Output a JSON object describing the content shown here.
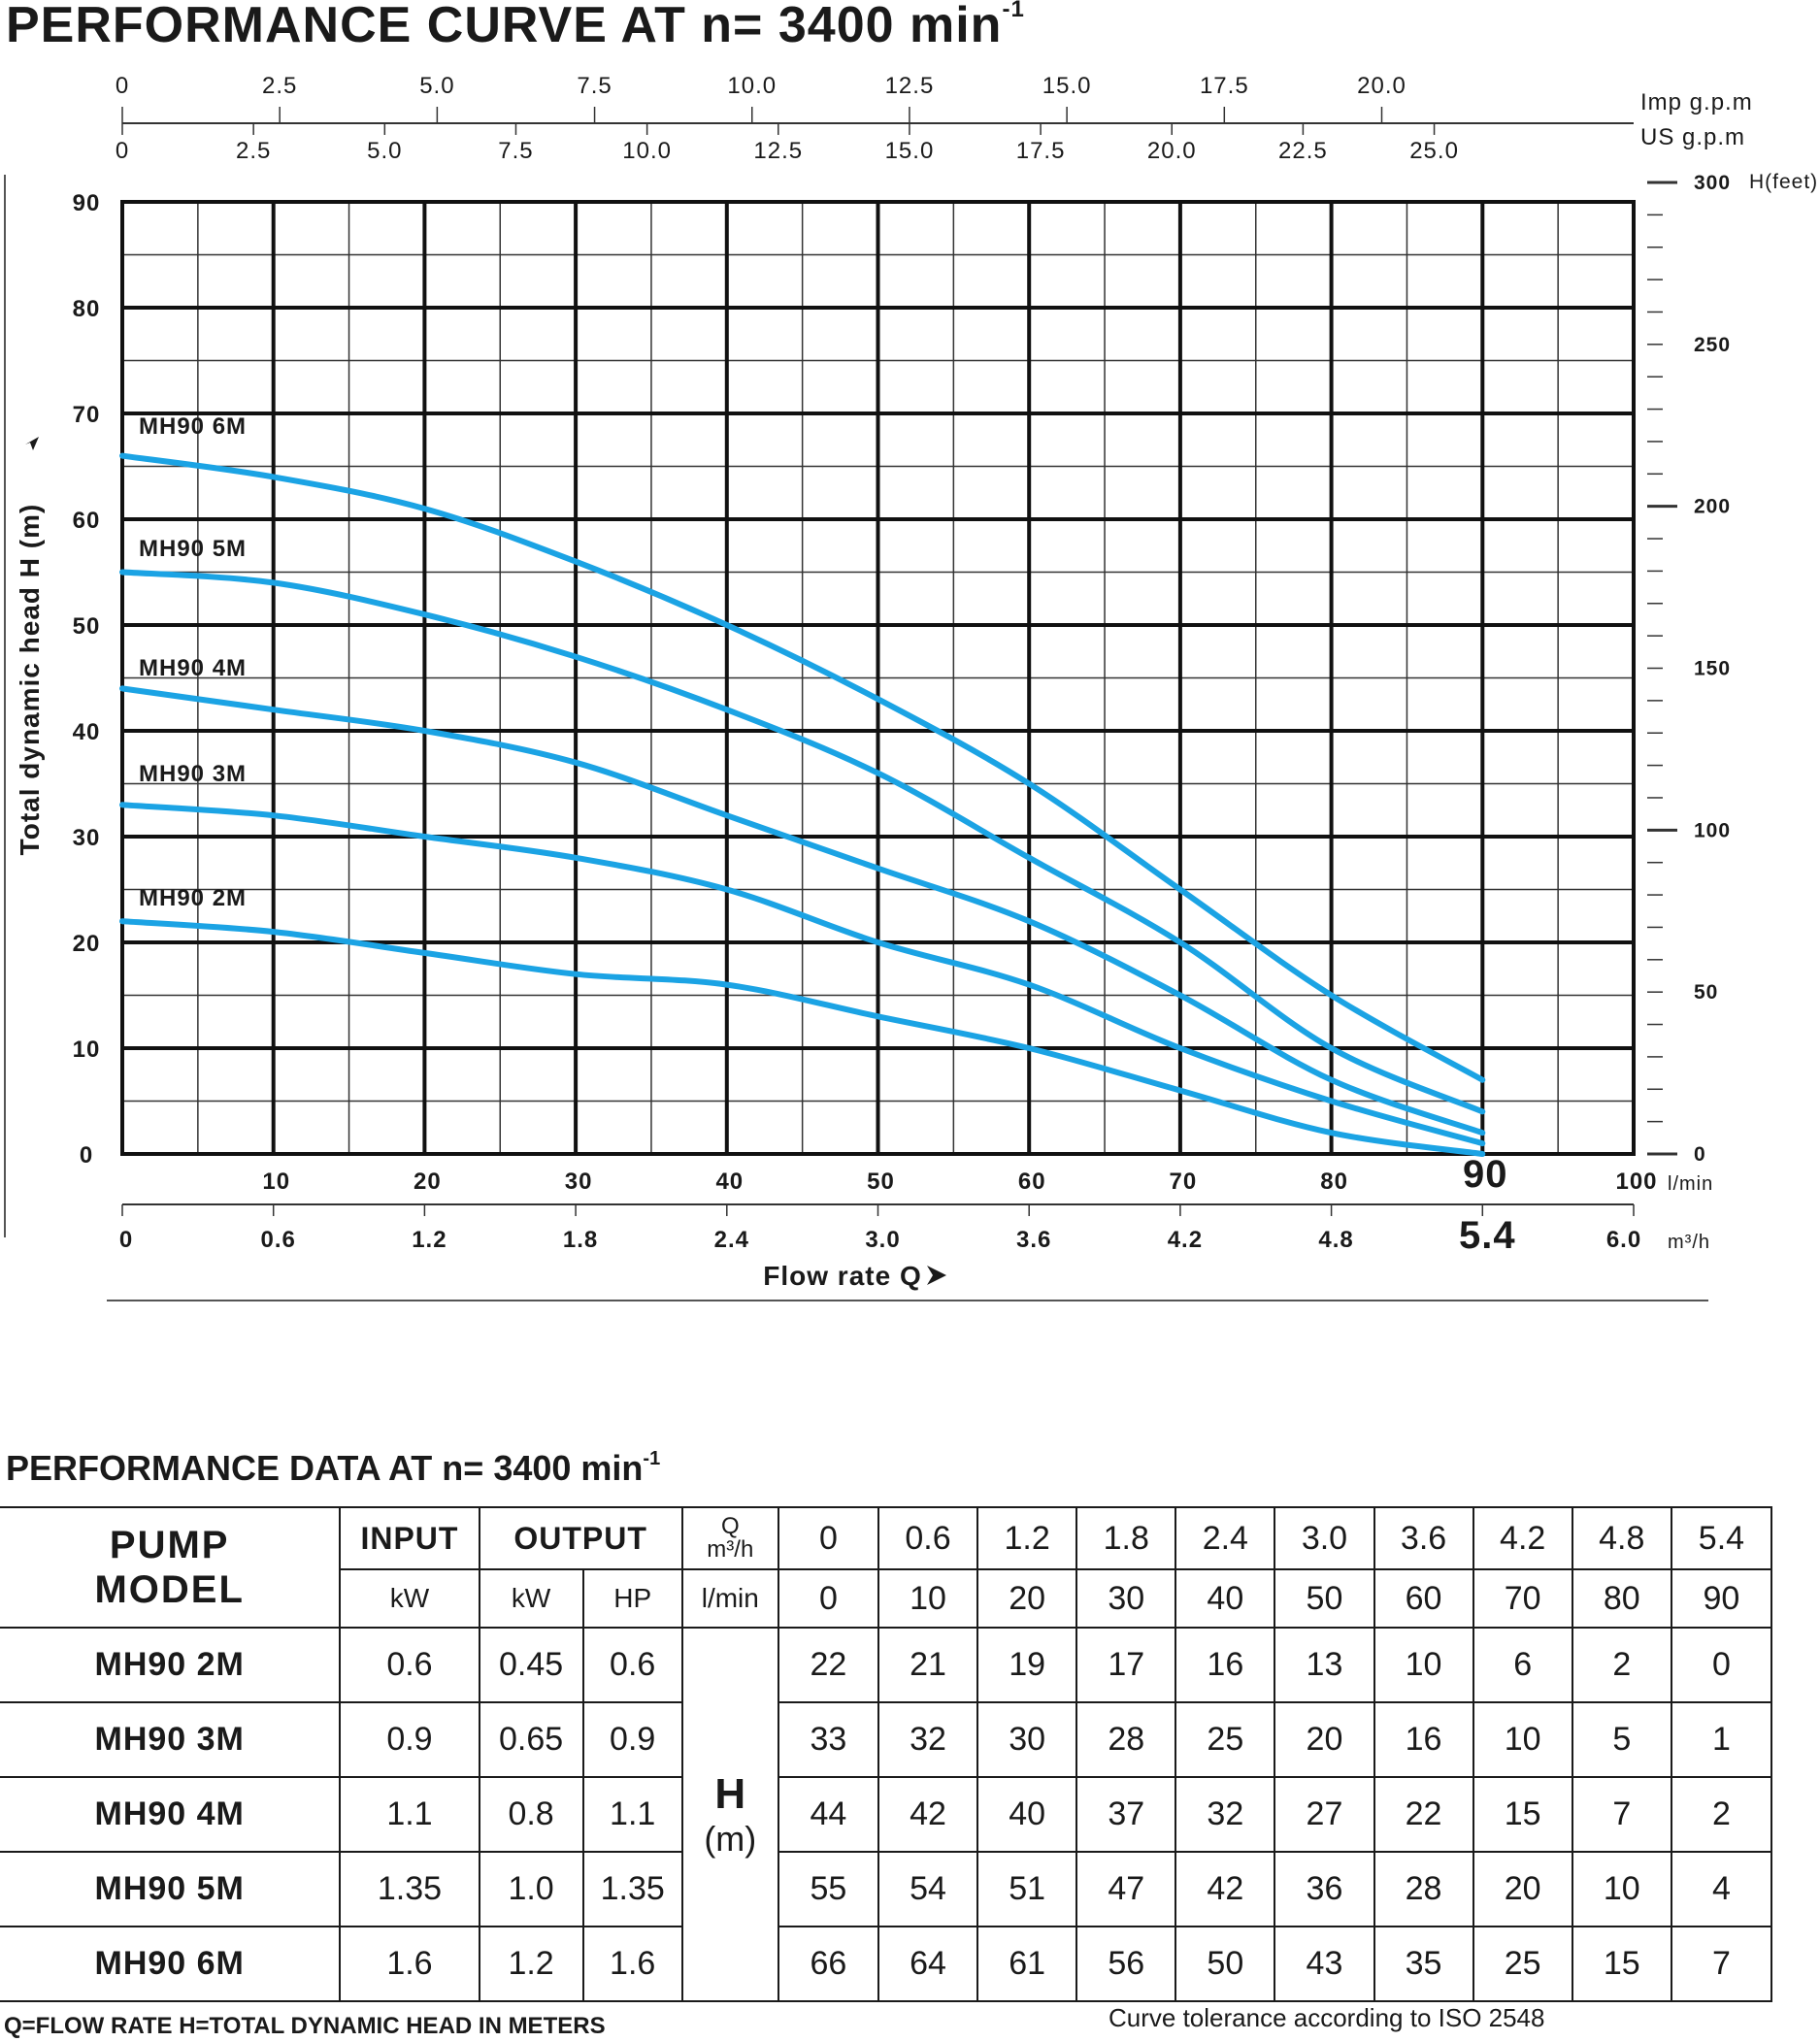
{
  "title": {
    "text": "PERFORMANCE CURVE AT n= 3400 min",
    "sup": "-1"
  },
  "chart_data": {
    "type": "line",
    "x_unit": "l/min",
    "x": [
      0,
      10,
      20,
      30,
      40,
      50,
      60,
      70,
      80,
      90
    ],
    "xlim": [
      0,
      100
    ],
    "ylim": [
      0,
      90
    ],
    "ylabel": "Total dynamic head H (m)",
    "xlabel": "Flow rate Q",
    "series": [
      {
        "name": "MH90 6M",
        "values": [
          66,
          64,
          61,
          56,
          50,
          43,
          35,
          25,
          15,
          7
        ]
      },
      {
        "name": "MH90 5M",
        "values": [
          55,
          54,
          51,
          47,
          42,
          36,
          28,
          20,
          10,
          4
        ]
      },
      {
        "name": "MH90 4M",
        "values": [
          44,
          42,
          40,
          37,
          32,
          27,
          22,
          15,
          7,
          2
        ]
      },
      {
        "name": "MH90 3M",
        "values": [
          33,
          32,
          30,
          28,
          25,
          20,
          16,
          10,
          5,
          1
        ]
      },
      {
        "name": "MH90 2M",
        "values": [
          22,
          21,
          19,
          17,
          16,
          13,
          10,
          6,
          2,
          0
        ]
      }
    ],
    "y_ticks": [
      "0",
      "10",
      "20",
      "30",
      "40",
      "50",
      "60",
      "70",
      "80",
      "90"
    ],
    "x_lmin_ticks": [
      "10",
      "20",
      "30",
      "40",
      "50",
      "60",
      "70",
      "80",
      "90",
      "100"
    ],
    "x_lmin_unit": "l/min",
    "x_m3h_ticks": [
      "0",
      "0.6",
      "1.2",
      "1.8",
      "2.4",
      "3.0",
      "3.6",
      "4.2",
      "4.8",
      "5.4",
      "6.0"
    ],
    "x_m3h_unit": "m³/h",
    "imp_gpm_ticks": [
      "0",
      "2.5",
      "5.0",
      "7.5",
      "10.0",
      "12.5",
      "15.0",
      "17.5",
      "20.0"
    ],
    "imp_gpm_label": "Imp g.p.m",
    "us_gpm_ticks": [
      "0",
      "2.5",
      "5.0",
      "7.5",
      "10.0",
      "12.5",
      "15.0",
      "17.5",
      "20.0",
      "22.5",
      "25.0"
    ],
    "us_gpm_label": "US  g.p.m",
    "feet_ticks": [
      "0",
      "50",
      "100",
      "150",
      "200",
      "250",
      "300"
    ],
    "feet_label": "H(feet)",
    "highlight_lmin": "90",
    "highlight_m3h": "5.4",
    "curve_color": "#1ba3e4",
    "grid_color": "#111111"
  },
  "data_title": {
    "text": "PERFORMANCE DATA AT n= 3400 min",
    "sup": "-1"
  },
  "table": {
    "pump_model_line1": "PUMP",
    "pump_model_line2": "MODEL",
    "input": "INPUT",
    "output": "OUTPUT",
    "q_label": "Q",
    "q_unit": "m³/h",
    "kw_in": "kW",
    "kw_out": "kW",
    "hp": "HP",
    "lmin": "l/min",
    "h_label": "H",
    "h_unit": "(m)",
    "flow_m3h": [
      "0",
      "0.6",
      "1.2",
      "1.8",
      "2.4",
      "3.0",
      "3.6",
      "4.2",
      "4.8",
      "5.4"
    ],
    "flow_lmin": [
      "0",
      "10",
      "20",
      "30",
      "40",
      "50",
      "60",
      "70",
      "80",
      "90"
    ],
    "rows": [
      {
        "model": "MH90 2M",
        "input_kw": "0.6",
        "output_kw": "0.45",
        "hp": "0.6",
        "h": [
          "22",
          "21",
          "19",
          "17",
          "16",
          "13",
          "10",
          "6",
          "2",
          "0"
        ]
      },
      {
        "model": "MH90 3M",
        "input_kw": "0.9",
        "output_kw": "0.65",
        "hp": "0.9",
        "h": [
          "33",
          "32",
          "30",
          "28",
          "25",
          "20",
          "16",
          "10",
          "5",
          "1"
        ]
      },
      {
        "model": "MH90 4M",
        "input_kw": "1.1",
        "output_kw": "0.8",
        "hp": "1.1",
        "h": [
          "44",
          "42",
          "40",
          "37",
          "32",
          "27",
          "22",
          "15",
          "7",
          "2"
        ]
      },
      {
        "model": "MH90 5M",
        "input_kw": "1.35",
        "output_kw": "1.0",
        "hp": "1.35",
        "h": [
          "55",
          "54",
          "51",
          "47",
          "42",
          "36",
          "28",
          "20",
          "10",
          "4"
        ]
      },
      {
        "model": "MH90 6M",
        "input_kw": "1.6",
        "output_kw": "1.2",
        "hp": "1.6",
        "h": [
          "66",
          "64",
          "61",
          "56",
          "50",
          "43",
          "35",
          "25",
          "15",
          "7"
        ]
      }
    ]
  },
  "footer_left": "Q=FLOW RATE  H=TOTAL DYNAMIC HEAD IN METERS",
  "footer_right": "Curve tolerance according to ISO 2548"
}
